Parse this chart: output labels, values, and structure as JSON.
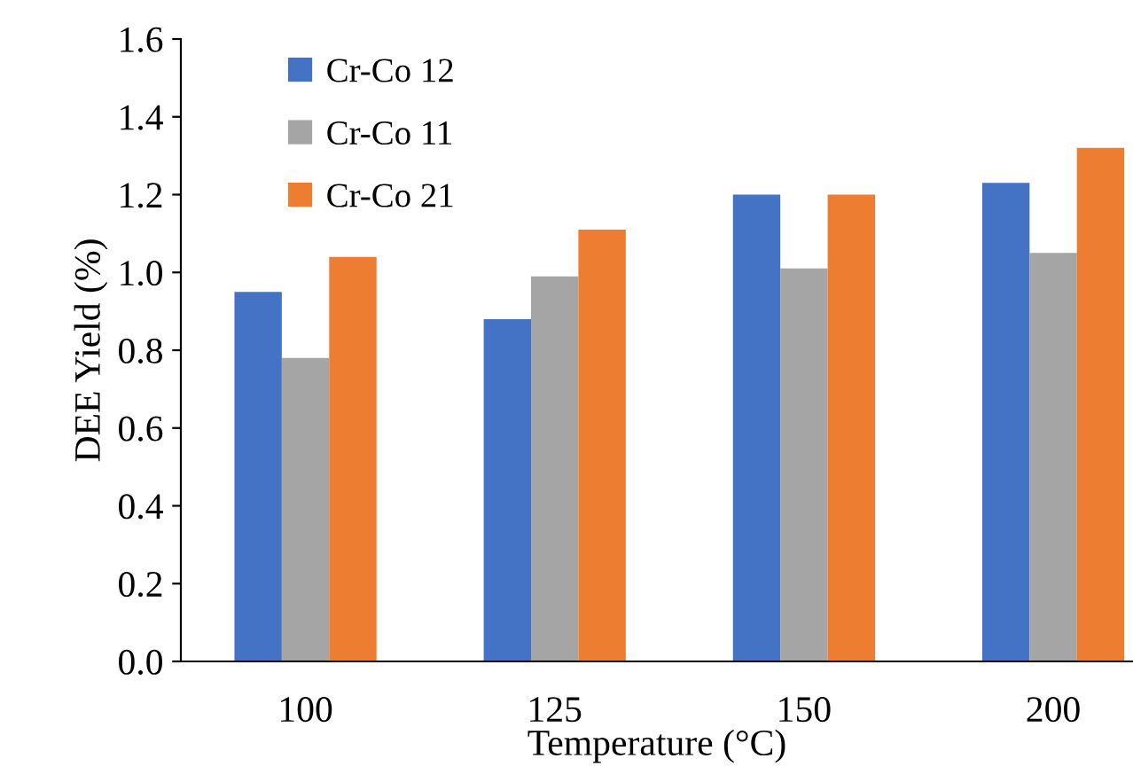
{
  "chart_data": {
    "type": "bar",
    "xlabel": "Temperature (°C)",
    "ylabel": "DEE Yield (%)",
    "categories": [
      "100",
      "125",
      "150",
      "200"
    ],
    "series": [
      {
        "name": "Cr-Co 12",
        "color": "#4472c4",
        "values": [
          0.95,
          0.88,
          1.2,
          1.23
        ]
      },
      {
        "name": "Cr-Co 11",
        "color": "#a5a5a5",
        "values": [
          0.78,
          0.99,
          1.01,
          1.05
        ]
      },
      {
        "name": "Cr-Co 21",
        "color": "#ed7d31",
        "values": [
          1.04,
          1.11,
          1.2,
          1.32
        ]
      }
    ],
    "ylim": [
      0,
      1.6
    ],
    "yticks": [
      {
        "value": 0,
        "label": "0.0"
      },
      0.2,
      0.4,
      0.6,
      0.8,
      {
        "value": 1,
        "label": "1.0"
      },
      1.2,
      1.4,
      1.6
    ],
    "grid": false,
    "legend": "top left"
  }
}
